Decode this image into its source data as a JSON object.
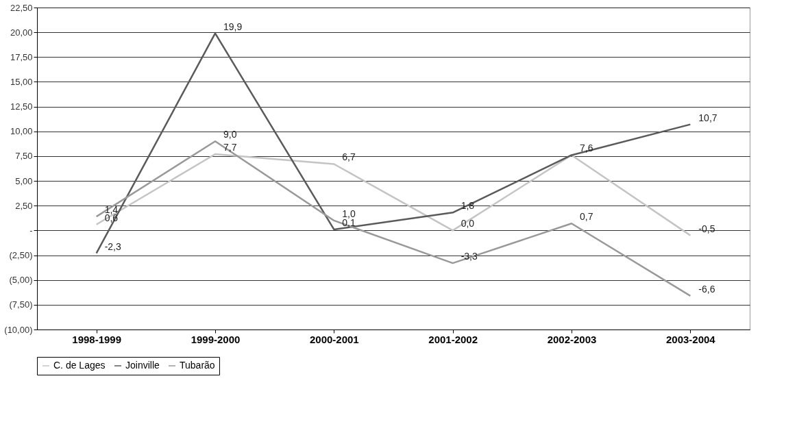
{
  "chart_data": {
    "type": "line",
    "categories": [
      "1998-1999",
      "1999-2000",
      "2000-2001",
      "2001-2002",
      "2002-2003",
      "2003-2004"
    ],
    "series": [
      {
        "name": "C. de Lages",
        "color": "#c4c4c4",
        "values": [
          0.6,
          7.7,
          6.7,
          0.0,
          7.6,
          -0.5
        ],
        "value_labels": [
          "0,6",
          "7,7",
          "6,7",
          "0,0",
          null,
          "-0,5"
        ]
      },
      {
        "name": "Joinville",
        "color": "#5a5a5a",
        "values": [
          -2.3,
          19.9,
          0.1,
          1.8,
          7.6,
          10.7
        ],
        "value_labels": [
          "-2,3",
          "19,9",
          "0,1",
          "1,8",
          "7,6",
          "10,7"
        ]
      },
      {
        "name": "Tubarão",
        "color": "#999999",
        "values": [
          1.4,
          9.0,
          1.0,
          -3.3,
          0.7,
          -6.6
        ],
        "value_labels": [
          "1,4",
          "9,0",
          "1,0",
          "-3,3",
          "0,7",
          "-6,6"
        ]
      }
    ],
    "ylim": [
      -10,
      22.5
    ],
    "yticks": [
      {
        "value": -10,
        "label": "(10,00)"
      },
      {
        "value": -7.5,
        "label": "(7,50)"
      },
      {
        "value": -5,
        "label": "(5,00)"
      },
      {
        "value": -2.5,
        "label": "(2,50)"
      },
      {
        "value": 0,
        "label": "-"
      },
      {
        "value": 2.5,
        "label": "2,50"
      },
      {
        "value": 5,
        "label": "5,00"
      },
      {
        "value": 7.5,
        "label": "7,50"
      },
      {
        "value": 10,
        "label": "10,00"
      },
      {
        "value": 12.5,
        "label": "12,50"
      },
      {
        "value": 15,
        "label": "15,00"
      },
      {
        "value": 17.5,
        "label": "17,50"
      },
      {
        "value": 20,
        "label": "20,00"
      },
      {
        "value": 22.5,
        "label": "22,50"
      }
    ],
    "grid": "y",
    "legend": "bottom",
    "marker": "none",
    "line_style": "solid"
  }
}
